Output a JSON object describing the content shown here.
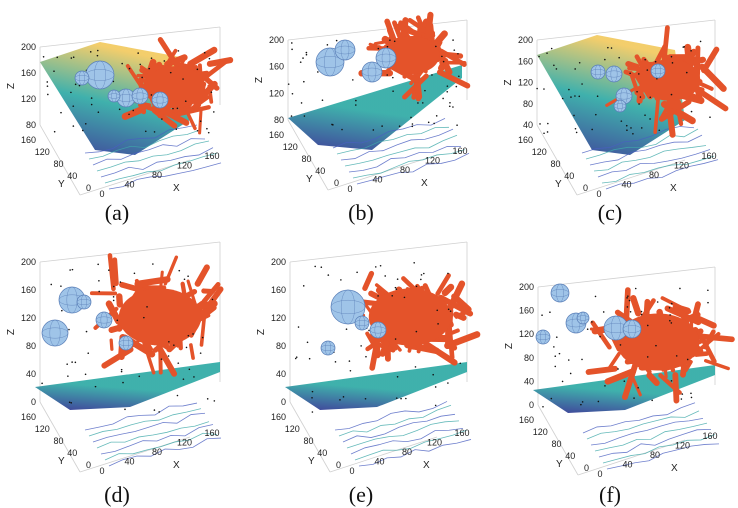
{
  "figure": {
    "colors": {
      "tree": "#e4532a",
      "sphere": "#9fc4e8",
      "sphere_mesh": "#5a7fb8",
      "contour": "#3fa9a9",
      "point": "#111111",
      "surface_low": "#2b2c8f",
      "surface_mid": "#2aa8a3",
      "surface_high": "#f2c85b"
    }
  },
  "chart_data": [
    {
      "panel": "a",
      "caption": "(a)",
      "type": "scatter",
      "title": "",
      "xlabel": "X",
      "ylabel": "Y",
      "zlabel": "Z",
      "x_ticks": [
        "0",
        "40",
        "80",
        "120",
        "160"
      ],
      "y_ticks": [
        "0",
        "40",
        "80",
        "120",
        "160"
      ],
      "z_ticks": [
        "80",
        "120",
        "160",
        "200"
      ],
      "zlim": [
        80,
        200
      ],
      "spheres": 6
    },
    {
      "panel": "b",
      "caption": "(b)",
      "type": "scatter",
      "title": "",
      "xlabel": "X",
      "ylabel": "Y",
      "zlabel": "Z",
      "x_ticks": [
        "0",
        "40",
        "80",
        "120",
        "160"
      ],
      "y_ticks": [
        "0",
        "40",
        "80",
        "120",
        "160"
      ],
      "z_ticks": [
        "80",
        "120",
        "160",
        "200"
      ],
      "zlim": [
        80,
        200
      ],
      "spheres": 4
    },
    {
      "panel": "c",
      "caption": "(c)",
      "type": "scatter",
      "title": "",
      "xlabel": "X",
      "ylabel": "Y",
      "zlabel": "Z",
      "x_ticks": [
        "0",
        "40",
        "80",
        "120",
        "160"
      ],
      "y_ticks": [
        "0",
        "40",
        "80",
        "120",
        "160"
      ],
      "z_ticks": [
        "40",
        "80",
        "120",
        "160",
        "200"
      ],
      "zlim": [
        40,
        200
      ],
      "spheres": 5
    },
    {
      "panel": "d",
      "caption": "(d)",
      "type": "scatter",
      "title": "",
      "xlabel": "X",
      "ylabel": "Y",
      "zlabel": "Z",
      "x_ticks": [
        "0",
        "40",
        "80",
        "120",
        "160"
      ],
      "y_ticks": [
        "0",
        "40",
        "80",
        "120",
        "160"
      ],
      "z_ticks": [
        "0",
        "40",
        "80",
        "120",
        "160",
        "200"
      ],
      "zlim": [
        0,
        200
      ],
      "spheres": 5
    },
    {
      "panel": "e",
      "caption": "(e)",
      "type": "scatter",
      "title": "",
      "xlabel": "X",
      "ylabel": "Y",
      "zlabel": "Z",
      "x_ticks": [
        "0",
        "40",
        "80",
        "120",
        "160"
      ],
      "y_ticks": [
        "0",
        "40",
        "80",
        "120",
        "160"
      ],
      "z_ticks": [
        "0",
        "40",
        "80",
        "120",
        "160",
        "200"
      ],
      "zlim": [
        0,
        200
      ],
      "spheres": 4
    },
    {
      "panel": "f",
      "caption": "(f)",
      "type": "scatter",
      "title": "",
      "xlabel": "X",
      "ylabel": "Y",
      "zlabel": "Z",
      "x_ticks": [
        "0",
        "40",
        "80",
        "120",
        "160"
      ],
      "y_ticks": [
        "0",
        "40",
        "80",
        "120",
        "160"
      ],
      "z_ticks": [
        "0",
        "40",
        "80",
        "120",
        "160",
        "200"
      ],
      "zlim": [
        0,
        200
      ],
      "spheres": 6
    }
  ]
}
